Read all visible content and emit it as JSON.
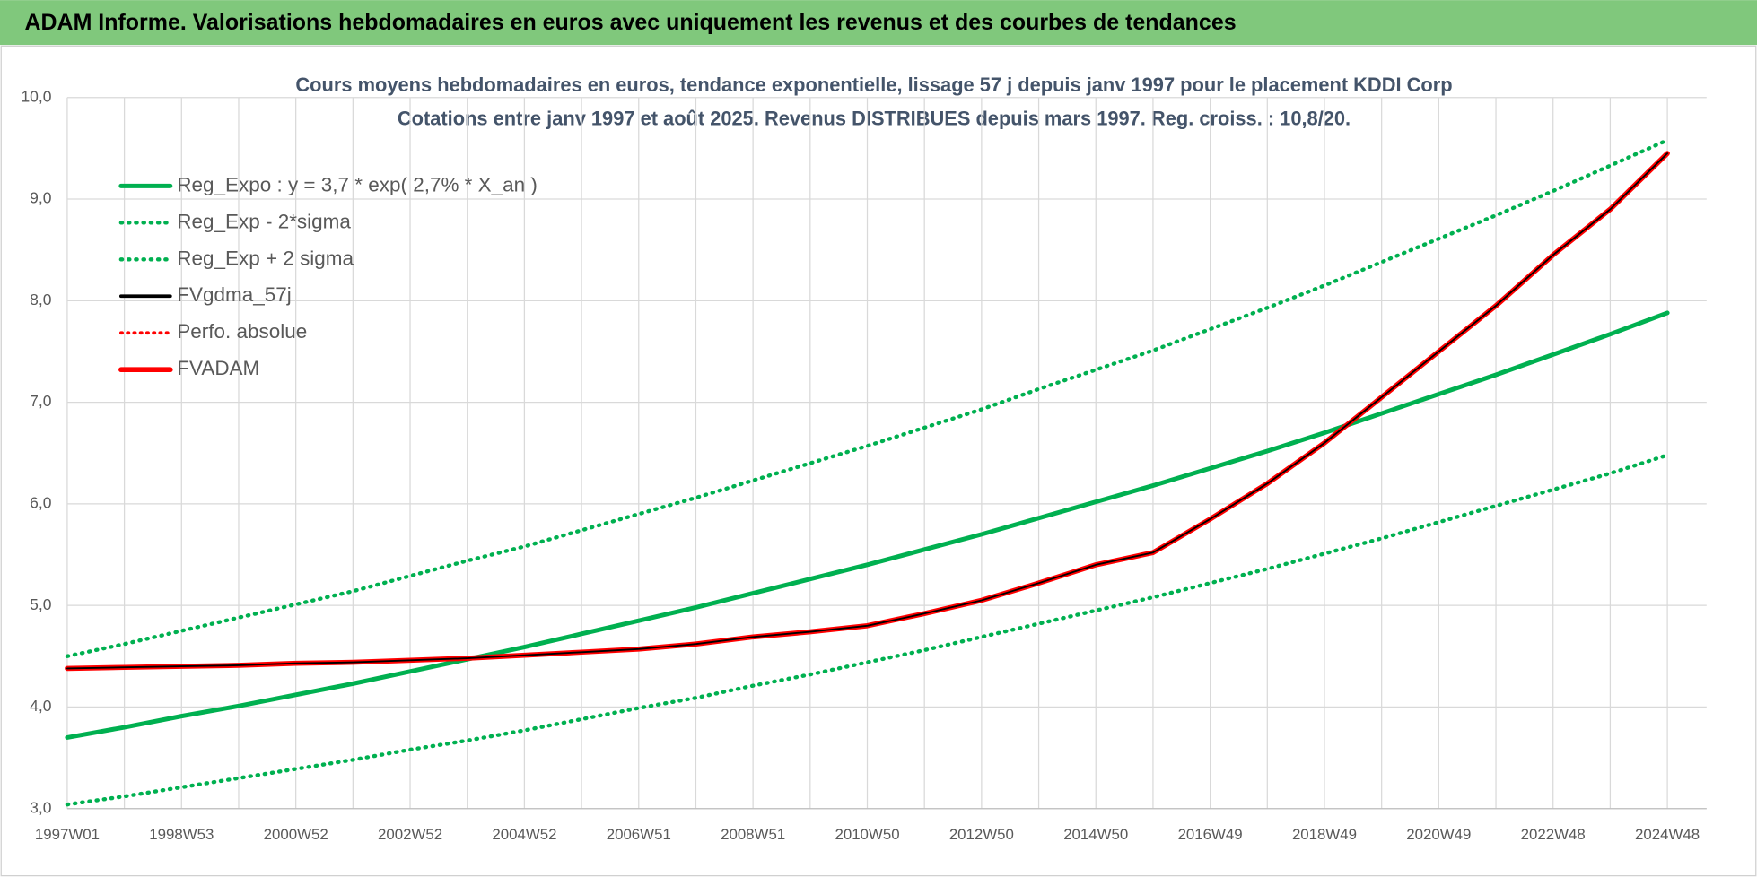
{
  "header": {
    "title": "ADAM Informe. Valorisations hebdomadaires en euros avec uniquement les revenus et des courbes de tendances"
  },
  "chart_data": {
    "type": "line",
    "title": "Cours moyens hebdomadaires en euros, tendance exponentielle, lissage 57 j depuis janv 1997 pour le placement KDDI Corp",
    "subtitle": "Cotations entre janv 1997 et août 2025. Revenus DISTRIBUES depuis mars 1997. Reg. croiss. : 10,8/20.",
    "categories": [
      "1997W01",
      null,
      "1998W53",
      null,
      "2000W52",
      null,
      "2002W52",
      null,
      "2004W52",
      null,
      "2006W51",
      null,
      "2008W51",
      null,
      "2010W50",
      null,
      "2012W50",
      null,
      "2014W50",
      null,
      "2016W49",
      null,
      "2018W49",
      null,
      "2020W49",
      null,
      "2022W48",
      null,
      "2024W48"
    ],
    "ylim": [
      3,
      10
    ],
    "yticks": [
      {
        "value": 3,
        "label": "3,0"
      },
      {
        "value": 4,
        "label": "4,0"
      },
      {
        "value": 5,
        "label": "5,0"
      },
      {
        "value": 6,
        "label": "6,0"
      },
      {
        "value": 7,
        "label": "7,0"
      },
      {
        "value": 8,
        "label": "8,0"
      },
      {
        "value": 9,
        "label": "9,0"
      },
      {
        "value": 10,
        "label": "10,0"
      }
    ],
    "grid": true,
    "legend": "upper left",
    "series": [
      {
        "name": "Reg_Expo : y = 3,7 * exp( 2,7% *  X_an )",
        "color": "#00b050",
        "dash": "solid",
        "linewidth": 4,
        "values": [
          3.7,
          3.8,
          3.91,
          4.01,
          4.12,
          4.23,
          4.35,
          4.47,
          4.59,
          4.72,
          4.85,
          4.98,
          5.12,
          5.26,
          5.4,
          5.55,
          5.7,
          5.86,
          6.02,
          6.18,
          6.35,
          6.52,
          6.7,
          6.89,
          7.08,
          7.27,
          7.47,
          7.67,
          7.88
        ]
      },
      {
        "name": "Reg_Exp - 2*sigma",
        "color": "#00b050",
        "dash": "dotted",
        "linewidth": 3.5,
        "values": [
          3.04,
          3.12,
          3.21,
          3.3,
          3.39,
          3.48,
          3.58,
          3.67,
          3.77,
          3.88,
          3.99,
          4.09,
          4.21,
          4.32,
          4.44,
          4.56,
          4.69,
          4.82,
          4.95,
          5.08,
          5.22,
          5.36,
          5.51,
          5.66,
          5.82,
          5.98,
          6.14,
          6.3,
          6.48
        ]
      },
      {
        "name": "Reg_Exp + 2 sigma",
        "color": "#00b050",
        "dash": "dotted",
        "linewidth": 3.5,
        "values": [
          4.5,
          4.62,
          4.75,
          4.88,
          5.01,
          5.14,
          5.29,
          5.44,
          5.58,
          5.74,
          5.9,
          6.06,
          6.23,
          6.4,
          6.57,
          6.75,
          6.93,
          7.13,
          7.32,
          7.51,
          7.72,
          7.93,
          8.15,
          8.38,
          8.61,
          8.84,
          9.08,
          9.33,
          9.58
        ]
      },
      {
        "name": "FVgdma_57j",
        "color": "#000000",
        "dash": "solid",
        "linewidth": 1.5,
        "values": [
          4.38,
          4.39,
          4.4,
          4.41,
          4.43,
          4.44,
          4.46,
          4.48,
          4.51,
          4.54,
          4.57,
          4.62,
          4.69,
          4.74,
          4.8,
          4.92,
          5.05,
          5.22,
          5.4,
          5.52,
          5.85,
          6.2,
          6.6,
          7.05,
          7.5,
          7.95,
          8.45,
          8.9,
          9.45
        ]
      },
      {
        "name": "Perfo. absolue",
        "color": "#ff0000",
        "dash": "dotted",
        "linewidth": 3,
        "values": [
          4.38,
          4.39,
          4.4,
          4.41,
          4.43,
          4.44,
          4.46,
          4.48,
          4.51,
          4.54,
          4.57,
          4.62,
          4.69,
          4.74,
          4.8,
          4.92,
          5.05,
          5.22,
          5.4,
          5.52,
          5.85,
          6.2,
          6.6,
          7.05,
          7.5,
          7.95,
          8.45,
          8.9,
          9.45
        ]
      },
      {
        "name": "FVADAM",
        "color": "#ff0000",
        "dash": "solid",
        "linewidth": 4.5,
        "values": [
          4.38,
          4.39,
          4.4,
          4.41,
          4.43,
          4.44,
          4.46,
          4.48,
          4.51,
          4.54,
          4.57,
          4.62,
          4.69,
          4.74,
          4.8,
          4.92,
          5.05,
          5.22,
          5.4,
          5.52,
          5.85,
          6.2,
          6.6,
          7.05,
          7.5,
          7.95,
          8.45,
          8.9,
          9.45
        ]
      }
    ]
  }
}
